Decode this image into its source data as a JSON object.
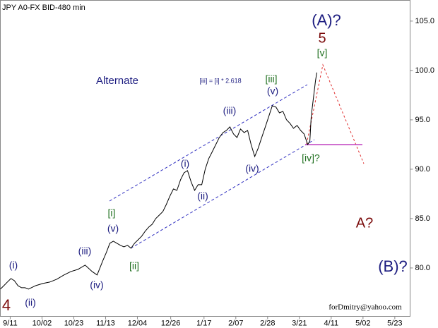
{
  "chart_data": {
    "type": "line",
    "title": "JPY A0-FX BID-480 min",
    "color": "#000000",
    "x": [
      -6.5,
      -4.2,
      -1.9,
      0.5,
      2.8,
      5.1,
      7.5,
      9.8,
      12.1,
      16.8,
      21.5,
      26.1,
      30.8,
      35.5,
      40.1,
      44.8,
      49.5,
      54.1,
      57.4,
      61.1,
      63.5,
      65.8,
      68.1,
      70.5,
      72.8,
      75.1,
      77.5,
      79.8,
      82.1,
      84.5,
      86.8,
      89.1,
      91.5,
      93.8,
      96.1,
      98.5,
      100.8,
      103.1,
      105.5,
      107.8,
      110.1,
      112.5,
      114.8,
      117.1,
      119.5,
      121.8,
      124.1,
      126.5,
      128.8,
      131.1,
      133.5,
      135.8,
      138.1,
      140.5,
      142.8,
      145.1,
      147.5,
      149.8,
      152.1,
      154.5,
      156.8,
      159.1,
      161.5,
      163.8,
      166.1,
      168.5,
      170.8,
      173.1,
      175.5,
      177.8,
      180.1,
      182.5,
      184.8,
      187.1,
      189.5,
      191.8,
      194.1,
      196.5,
      197.9,
      198.8,
      200.2,
      201.6,
      202.5
    ],
    "values": [
      77.86,
      78.21,
      78.57,
      78.93,
      78.71,
      78.21,
      78.0,
      78.0,
      77.86,
      78.21,
      78.43,
      78.57,
      78.86,
      79.29,
      79.64,
      79.86,
      80.29,
      79.64,
      79.29,
      80.71,
      81.57,
      82.5,
      82.71,
      82.5,
      82.29,
      82.14,
      82.29,
      82.0,
      82.5,
      82.86,
      83.21,
      83.71,
      84.14,
      84.43,
      85.0,
      85.36,
      85.71,
      86.43,
      87.29,
      88.0,
      87.86,
      88.93,
      89.64,
      89.86,
      88.71,
      87.86,
      88.43,
      88.43,
      90.0,
      91.07,
      91.79,
      92.5,
      93.21,
      93.71,
      93.93,
      94.29,
      93.57,
      93.21,
      94.07,
      93.71,
      93.93,
      92.5,
      91.29,
      92.14,
      93.21,
      94.29,
      95.36,
      96.43,
      96.29,
      95.71,
      95.86,
      95.0,
      94.64,
      94.14,
      94.43,
      93.93,
      93.57,
      92.5,
      92.86,
      95.36,
      97.14,
      98.93,
      99.79
    ],
    "xlim": [
      -6.5,
      264.1
    ],
    "xticks": [
      {
        "value": 0,
        "label": "9/11"
      },
      {
        "value": 21,
        "label": "10/02"
      },
      {
        "value": 42,
        "label": "10/23"
      },
      {
        "value": 63,
        "label": "11/13"
      },
      {
        "value": 84,
        "label": "12/04"
      },
      {
        "value": 106,
        "label": "12/26"
      },
      {
        "value": 128,
        "label": "1/17"
      },
      {
        "value": 149,
        "label": "2/07"
      },
      {
        "value": 170,
        "label": "2/28"
      },
      {
        "value": 191,
        "label": "3/21"
      },
      {
        "value": 212,
        "label": "4/11"
      },
      {
        "value": 233,
        "label": "5/02"
      },
      {
        "value": 254,
        "label": "5/23"
      }
    ],
    "ylim": [
      75.1,
      107.1
    ],
    "yticks": [
      {
        "value": 80,
        "label": "80.0"
      },
      {
        "value": 85,
        "label": "85.0"
      },
      {
        "value": 90,
        "label": "90.0"
      },
      {
        "value": 95,
        "label": "95.0"
      },
      {
        "value": 100,
        "label": "100.0"
      },
      {
        "value": 105,
        "label": "105.0"
      }
    ],
    "annotations": [
      "(A)?",
      "5",
      "[v]",
      "Alternate",
      "[iii] = [i] * 2.618",
      "[iii]",
      "(v)",
      "(iii)",
      "(i)",
      "(iv)",
      "(ii)",
      "[iv]?",
      "[i]",
      "(v)",
      "[ii]",
      "(iii)",
      "(iv)",
      "(i)",
      "(ii)",
      "4",
      "A?",
      "(B)?",
      "forDmitry@yahoo.com"
    ]
  }
}
